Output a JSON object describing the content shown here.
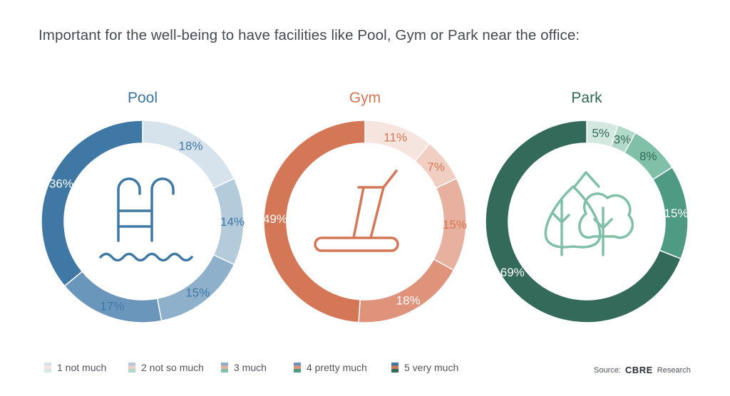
{
  "title": "Important for the well-being to have facilities like Pool, Gym or Park near the office:",
  "chart_data": [
    {
      "type": "donut",
      "title": "Pool",
      "icon": "pool-ladder-icon",
      "title_color": "#3b74a0",
      "categories": [
        "1 not much",
        "2 not so much",
        "3 much",
        "4 pretty much",
        "5 very much"
      ],
      "values": [
        18,
        14,
        15,
        17,
        36
      ],
      "labels": [
        "18%",
        "14%",
        "15%",
        "17%",
        "36%"
      ],
      "colors": [
        "#d6e3ec",
        "#b4cbdc",
        "#8fb0cb",
        "#6a96bb",
        "#3f78a4"
      ],
      "label_colors": [
        "#3f78a4",
        "#3f78a4",
        "#3f78a4",
        "#3f78a4",
        "#ffffff"
      ]
    },
    {
      "type": "donut",
      "title": "Gym",
      "icon": "treadmill-icon",
      "title_color": "#d67452",
      "categories": [
        "1 not much",
        "2 not so much",
        "3 much",
        "4 pretty much",
        "5 very much"
      ],
      "values": [
        11,
        7,
        15,
        18,
        49
      ],
      "labels": [
        "11%",
        "7%",
        "15%",
        "18%",
        "49%"
      ],
      "colors": [
        "#f6e4de",
        "#f0cec2",
        "#e8b09e",
        "#e0937b",
        "#d47757"
      ],
      "label_colors": [
        "#d47757",
        "#d47757",
        "#d47757",
        "#ffffff",
        "#ffffff"
      ]
    },
    {
      "type": "donut",
      "title": "Park",
      "icon": "trees-icon",
      "title_color": "#2f6654",
      "categories": [
        "1 not much",
        "2 not so much",
        "3 much",
        "4 pretty much",
        "5 very much"
      ],
      "values": [
        5,
        3,
        8,
        15,
        69
      ],
      "labels": [
        "5%",
        "3%",
        "8%",
        "15%",
        "69%"
      ],
      "colors": [
        "#d3e9e0",
        "#b2d8c9",
        "#80bfa8",
        "#4e9a82",
        "#336a5a"
      ],
      "label_colors": [
        "#336a5a",
        "#336a5a",
        "#336a5a",
        "#ffffff",
        "#ffffff"
      ]
    }
  ],
  "legend": [
    {
      "label": "1 not much",
      "colors": [
        "#d6e3ec",
        "#f6e4de",
        "#d3e9e0"
      ]
    },
    {
      "label": "2 not so much",
      "colors": [
        "#b4cbdc",
        "#f0cec2",
        "#b2d8c9"
      ]
    },
    {
      "label": "3 much",
      "colors": [
        "#8fb0cb",
        "#e8b09e",
        "#80bfa8"
      ]
    },
    {
      "label": "4 pretty much",
      "colors": [
        "#6a96bb",
        "#e0937b",
        "#4e9a82"
      ]
    },
    {
      "label": "5 very much",
      "colors": [
        "#3f78a4",
        "#d47757",
        "#336a5a"
      ]
    }
  ],
  "source": {
    "prefix": "Source:",
    "brand": "CBRE",
    "suffix": "Research"
  }
}
